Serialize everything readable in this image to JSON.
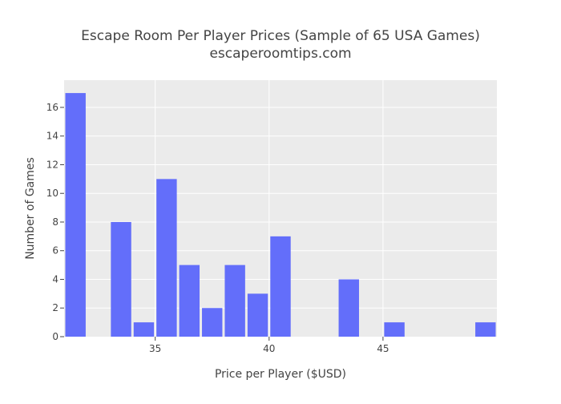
{
  "chart_data": {
    "type": "bar",
    "title": "Escape Room Per Player Prices (Sample of 65 USA Games)",
    "subtitle": "escaperoomtips.com",
    "xlabel": "Price per Player ($USD)",
    "ylabel": "Number of Games",
    "xlim": [
      31,
      50
    ],
    "ylim": [
      0,
      17.9
    ],
    "x_ticks": [
      35,
      40,
      45
    ],
    "y_ticks": [
      0,
      2,
      4,
      6,
      8,
      10,
      12,
      14,
      16
    ],
    "bin_width": 1,
    "bins": [
      {
        "x0": 31,
        "x1": 32,
        "value": 17
      },
      {
        "x0": 33,
        "x1": 34,
        "value": 8
      },
      {
        "x0": 34,
        "x1": 35,
        "value": 1
      },
      {
        "x0": 35,
        "x1": 36,
        "value": 11
      },
      {
        "x0": 36,
        "x1": 37,
        "value": 5
      },
      {
        "x0": 37,
        "x1": 38,
        "value": 2
      },
      {
        "x0": 38,
        "x1": 39,
        "value": 5
      },
      {
        "x0": 39,
        "x1": 40,
        "value": 3
      },
      {
        "x0": 40,
        "x1": 41,
        "value": 7
      },
      {
        "x0": 43,
        "x1": 44,
        "value": 4
      },
      {
        "x0": 45,
        "x1": 46,
        "value": 1
      },
      {
        "x0": 49,
        "x1": 50,
        "value": 1
      }
    ],
    "bar_color": "#636efa",
    "plot_background": "#ebebeb",
    "grid_color": "#ffffff",
    "grid": true,
    "legend": "none"
  }
}
